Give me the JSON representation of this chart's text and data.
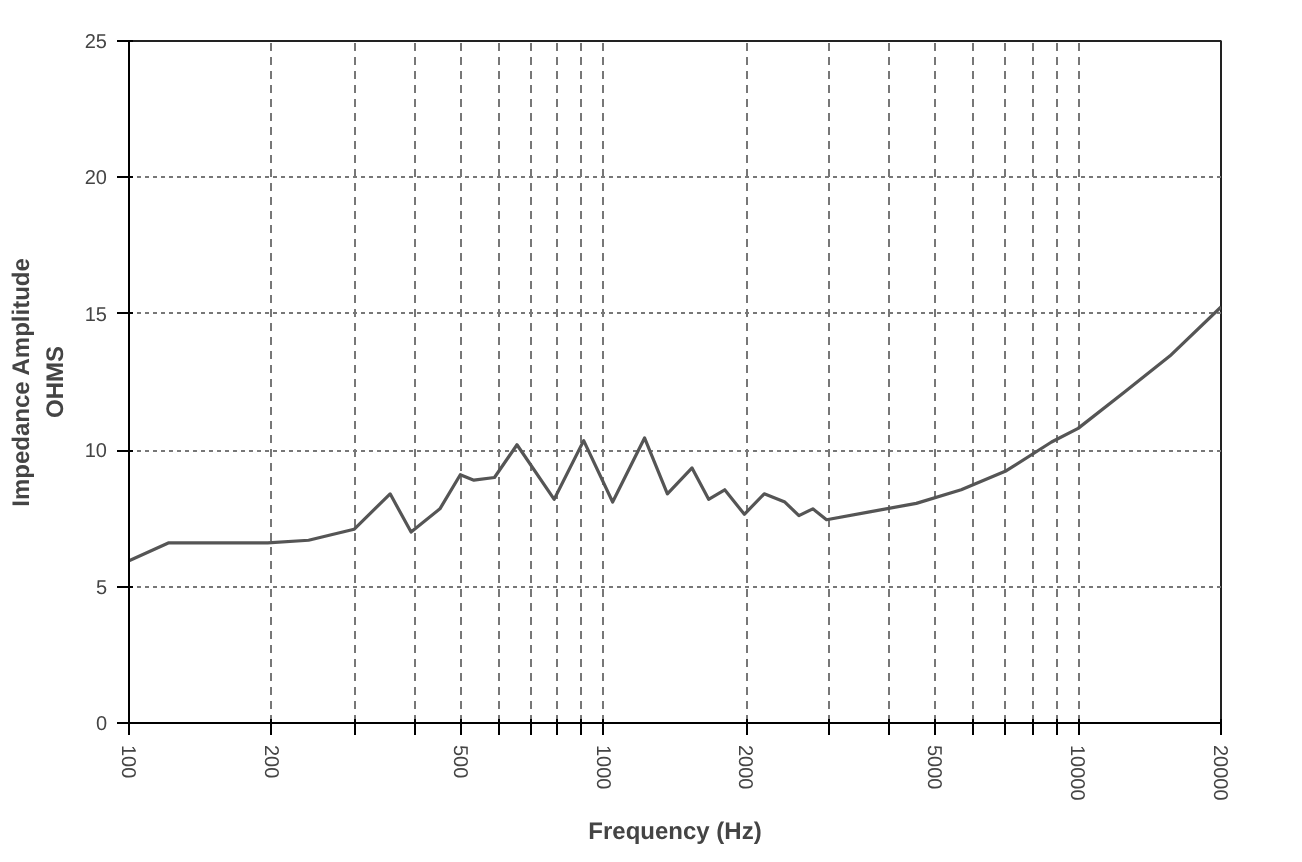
{
  "chart_data": {
    "type": "line",
    "xlabel": "Frequency (Hz)",
    "ylabel": "Impedance Amplitude\nOHMS",
    "log": "x",
    "grid": true,
    "marker": "none",
    "line_style": "solid",
    "xlim": [
      100,
      20000
    ],
    "ylim": [
      0,
      25
    ],
    "xticks": [
      100,
      200,
      {
        "value": 300,
        "label": null
      },
      {
        "value": 400,
        "label": null
      },
      500,
      {
        "value": 600,
        "label": null
      },
      {
        "value": 700,
        "label": null
      },
      {
        "value": 800,
        "label": null
      },
      {
        "value": 900,
        "label": null
      },
      1000,
      2000,
      {
        "value": 3000,
        "label": null
      },
      {
        "value": 4000,
        "label": null
      },
      5000,
      {
        "value": 6000,
        "label": null
      },
      {
        "value": 7000,
        "label": null
      },
      {
        "value": 8000,
        "label": null
      },
      {
        "value": 9000,
        "label": null
      },
      10000,
      20000
    ],
    "yticks": [
      0,
      5,
      10,
      15,
      20,
      25
    ],
    "series": [
      {
        "color": "#555555",
        "x": [
          100,
          121,
          196,
          239,
          298,
          355,
          393,
          452,
          499,
          533,
          589,
          657,
          787,
          908,
          1045,
          1220,
          1363,
          1536,
          1665,
          1800,
          1980,
          2180,
          2410,
          2580,
          2760,
          2950,
          3660,
          4560,
          5670,
          7060,
          8790,
          10000,
          12450,
          15600,
          20000
        ],
        "values": [
          5.95,
          6.6,
          6.6,
          6.7,
          7.1,
          8.4,
          7.0,
          7.85,
          9.1,
          8.9,
          9.0,
          10.2,
          8.2,
          10.35,
          8.1,
          10.45,
          8.4,
          9.35,
          8.2,
          8.55,
          7.65,
          8.4,
          8.1,
          7.6,
          7.85,
          7.45,
          7.75,
          8.05,
          8.55,
          9.25,
          10.3,
          10.8,
          12.1,
          13.45,
          15.25
        ]
      }
    ]
  }
}
